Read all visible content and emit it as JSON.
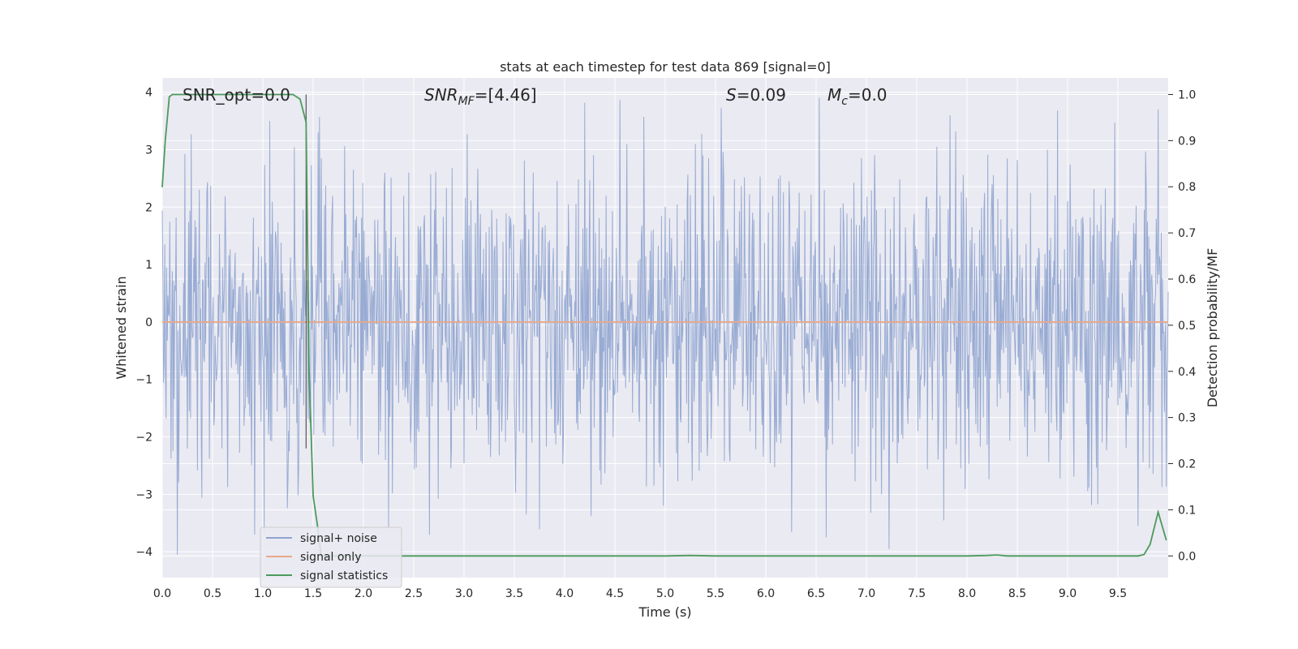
{
  "chart_data": {
    "type": "line",
    "title": "stats at each timestep for test data 869 [signal=0]",
    "xlabel": "Time (s)",
    "ylabel": "Whitened strain",
    "y2label": "Detection probability/MF",
    "xlim": [
      0.0,
      10.0
    ],
    "ylim": [
      -4.45,
      4.25
    ],
    "y2lim": [
      -0.047,
      1.036
    ],
    "x_ticks": [
      "0.0",
      "0.5",
      "1.0",
      "1.5",
      "2.0",
      "2.5",
      "3.0",
      "3.5",
      "4.0",
      "4.5",
      "5.0",
      "5.5",
      "6.0",
      "6.5",
      "7.0",
      "7.5",
      "8.0",
      "8.5",
      "9.0",
      "9.5"
    ],
    "y_ticks": [
      "4",
      "3",
      "2",
      "1",
      "0",
      "−1",
      "−2",
      "−3",
      "−4"
    ],
    "y2_ticks": [
      "1.0",
      "0.9",
      "0.8",
      "0.7",
      "0.6",
      "0.5",
      "0.4",
      "0.3",
      "0.2",
      "0.1",
      "0.0"
    ],
    "grid": true,
    "legend_position": "bottom-left",
    "annotations": {
      "snr_opt": "SNR_opt=0.0",
      "snr_mf_main": "SNR",
      "snr_mf_sub": "MF",
      "snr_mf_value": "=[4.46]",
      "s_var": "S",
      "s_value": "=0.09",
      "mc_main": "M",
      "mc_sub": "c",
      "mc_value": "=0.0"
    },
    "vertical_marker_x": 1.43,
    "series": [
      {
        "name": "signal+ noise",
        "color": "#8fa4cf",
        "axis": "left",
        "description_values": "noise band approx within [-2.5, 2.5]",
        "envelope": 2.2,
        "peaks": [
          {
            "x": 0.15,
            "y": -4.05
          },
          {
            "x": 0.92,
            "y": -3.7
          },
          {
            "x": 1.07,
            "y": 3.5
          },
          {
            "x": 1.55,
            "y": 3.3
          },
          {
            "x": 3.62,
            "y": -3.35
          },
          {
            "x": 6.53,
            "y": 3.9
          },
          {
            "x": 6.6,
            "y": -3.75
          },
          {
            "x": 7.83,
            "y": 3.6
          },
          {
            "x": 9.9,
            "y": 3.7
          },
          {
            "x": 9.7,
            "y": -3.55
          }
        ]
      },
      {
        "name": "signal only",
        "color": "#e8a88a",
        "axis": "left",
        "x": [
          0.0,
          10.0
        ],
        "y": [
          0.0,
          0.0
        ]
      },
      {
        "name": "signal statistics",
        "color": "#4c9a5c",
        "axis": "right",
        "x": [
          0.0,
          0.03,
          0.07,
          0.1,
          0.2,
          0.5,
          1.0,
          1.3,
          1.37,
          1.43,
          1.46,
          1.5,
          1.54,
          1.58,
          2.0,
          3.0,
          4.0,
          5.0,
          5.25,
          5.5,
          6.0,
          7.0,
          8.0,
          8.2,
          8.3,
          8.4,
          9.0,
          9.7,
          9.76,
          9.82,
          9.9,
          9.98
        ],
        "y": [
          0.8,
          0.9,
          0.995,
          1.0,
          1.0,
          1.0,
          1.0,
          1.0,
          0.99,
          0.94,
          0.4,
          0.13,
          0.07,
          0.0,
          0.0,
          0.0,
          0.0,
          0.0,
          0.001,
          0.0,
          0.0,
          0.0,
          0.0,
          0.001,
          0.002,
          0.0,
          0.0,
          0.0,
          0.003,
          0.025,
          0.095,
          0.035
        ]
      }
    ]
  }
}
